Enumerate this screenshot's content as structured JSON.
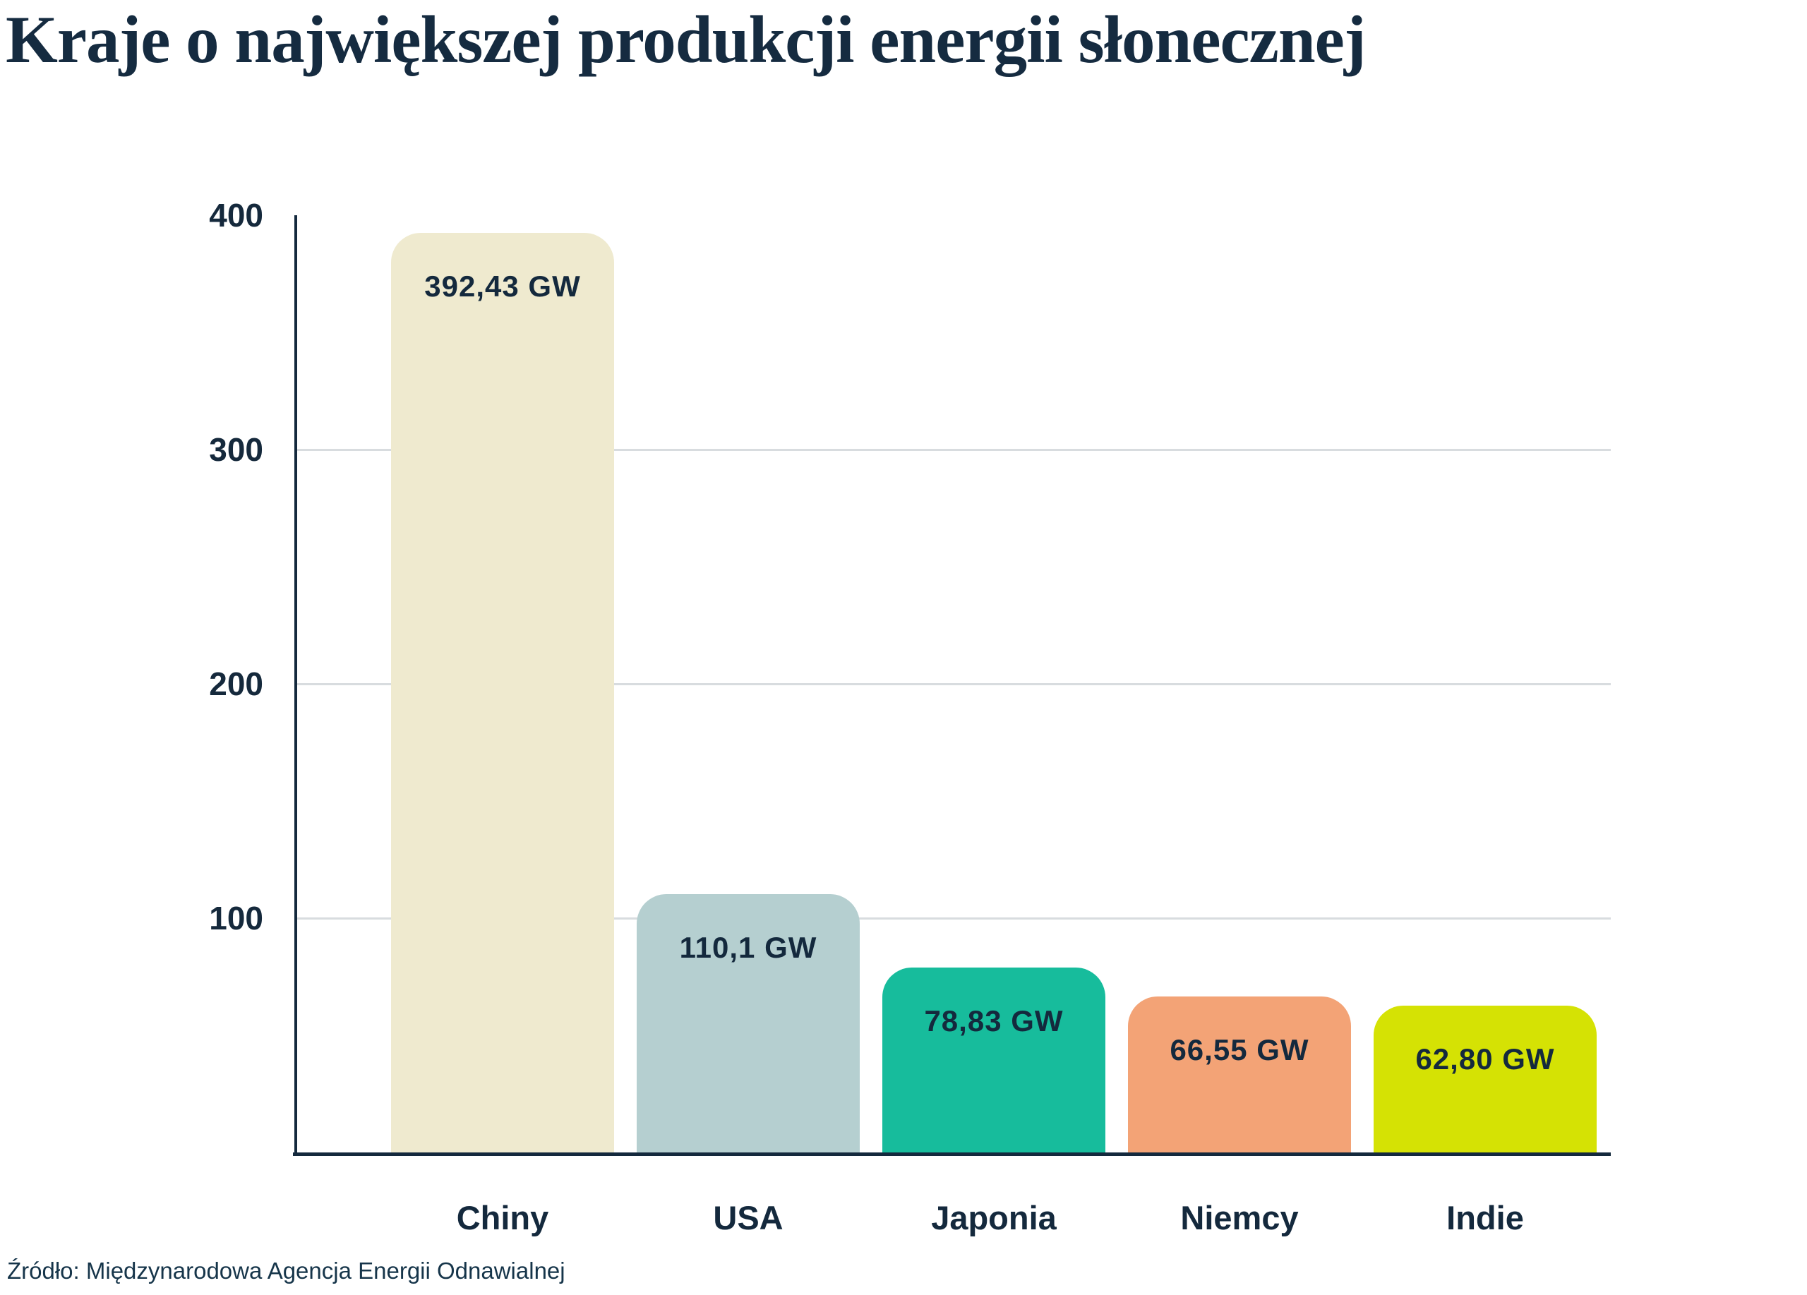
{
  "title": "Kraje o największej produkcji energii słonecznej",
  "source": "Źródło: Międzynarodowa Agencja Energii Odnawialnej",
  "y_axis": {
    "tick_labels": [
      "400",
      "300",
      "200",
      "100"
    ]
  },
  "bars": [
    {
      "country": "Chiny",
      "value": 392.43,
      "value_label": "392,43 GW",
      "color": "#efeacf"
    },
    {
      "country": "USA",
      "value": 110.1,
      "value_label": "110,1 GW",
      "color": "#b5cfd0"
    },
    {
      "country": "Japonia",
      "value": 78.83,
      "value_label": "78,83 GW",
      "color": "#17bc9c"
    },
    {
      "country": "Niemcy",
      "value": 66.55,
      "value_label": "66,55 GW",
      "color": "#f3a376"
    },
    {
      "country": "Indie",
      "value": 62.8,
      "value_label": "62,80 GW",
      "color": "#d5e204"
    }
  ],
  "chart_data": {
    "type": "bar",
    "title": "Kraje o największej produkcji energii słonecznej",
    "categories": [
      "Chiny",
      "USA",
      "Japonia",
      "Niemcy",
      "Indie"
    ],
    "values": [
      392.43,
      110.1,
      78.83,
      66.55,
      62.8
    ],
    "value_labels": [
      "392,43 GW",
      "110,1 GW",
      "78,83 GW",
      "66,55 GW",
      "62,80 GW"
    ],
    "unit": "GW",
    "xlabel": "",
    "ylabel": "",
    "ylim": [
      0,
      400
    ],
    "yticks": [
      400,
      300,
      200,
      100
    ],
    "gridline_values": [
      300,
      200,
      100
    ],
    "grid": "horizontal",
    "legend": "none",
    "bar_colors": [
      "#efeacf",
      "#b5cfd0",
      "#17bc9c",
      "#f3a376",
      "#d5e204"
    ],
    "source": "Źródło: Międzynarodowa Agencja Energii Odnawialnej"
  },
  "colors": {
    "text_navy": "#14293d",
    "axis": "#14293d",
    "gridline": "#d8dcdf",
    "background": "#ffffff"
  }
}
